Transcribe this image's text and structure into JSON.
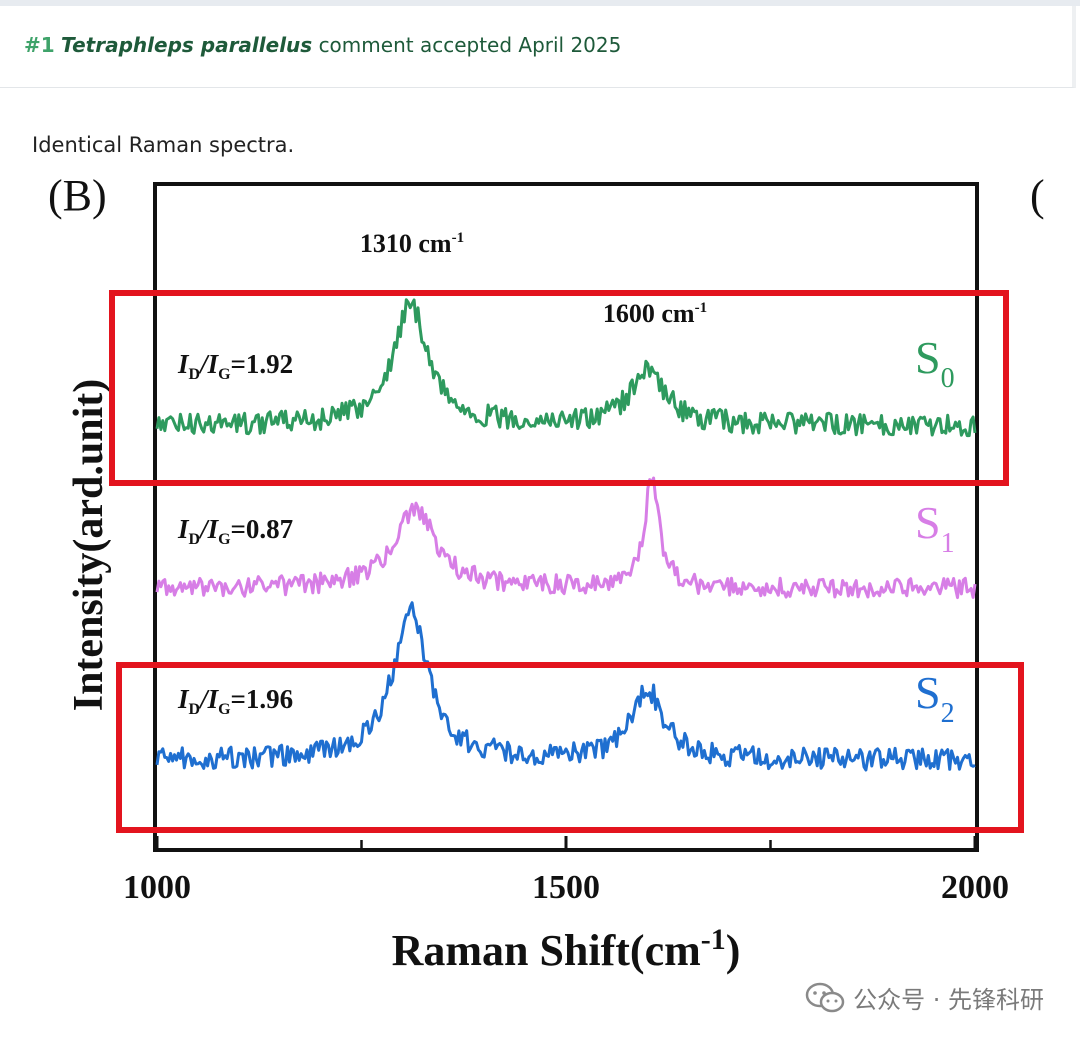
{
  "header": {
    "number": "#1",
    "species": "Tetraphleps parallelus",
    "status_text": "comment accepted April 2025"
  },
  "caption": "Identical Raman spectra.",
  "watermark": {
    "text": "公众号 · 先锋科研",
    "icon": "wechat-icon"
  },
  "colors": {
    "s0": "#2e9a5e",
    "s1": "#d77ee6",
    "s2": "#1f6fd0",
    "highlight": "#e3141e",
    "header_green": "#1e5a3a"
  },
  "chart_data": {
    "type": "line",
    "panel_label": "(B)",
    "xlabel": "Raman Shift(cm",
    "xlabel_superscript": "-1",
    "xlabel_close": ")",
    "ylabel": "Intensity(ard.unit)",
    "xlim": [
      1000,
      2000
    ],
    "x_ticks": [
      1000,
      1500,
      2000
    ],
    "x_tick_labels": [
      "1000",
      "1500",
      "2000"
    ],
    "minor_ticks": [
      1250,
      1750
    ],
    "peak_annotations": [
      {
        "text": "1310 cm",
        "superscript": "-1",
        "x": 1310
      },
      {
        "text": "1600 cm",
        "superscript": "-1",
        "x": 1600
      }
    ],
    "series": [
      {
        "name": "S0",
        "label_main": "S",
        "label_sub": "0",
        "color": "#2e9a5e",
        "ratio_label": "=1.92",
        "baseline": 0.0,
        "peaks": [
          {
            "center": 1310,
            "height": 1.0,
            "width": 26
          },
          {
            "center": 1600,
            "height": 0.48,
            "width": 24
          }
        ],
        "highlighted": true
      },
      {
        "name": "S1",
        "label_main": "S",
        "label_sub": "1",
        "color": "#d77ee6",
        "ratio_label": "=0.87",
        "baseline": 0.0,
        "peaks": [
          {
            "center": 1315,
            "height": 0.68,
            "width": 30
          },
          {
            "center": 1605,
            "height": 0.92,
            "width": 11
          }
        ],
        "highlighted": false
      },
      {
        "name": "S2",
        "label_main": "S",
        "label_sub": "2",
        "color": "#1f6fd0",
        "ratio_label": "=1.96",
        "baseline": 0.0,
        "peaks": [
          {
            "center": 1310,
            "height": 1.0,
            "width": 26
          },
          {
            "center": 1600,
            "height": 0.46,
            "width": 24
          }
        ],
        "highlighted": true
      }
    ],
    "ratio_prefix_main": "I",
    "ratio_prefix_sub_d": "D",
    "ratio_prefix_sub_g": "G"
  }
}
